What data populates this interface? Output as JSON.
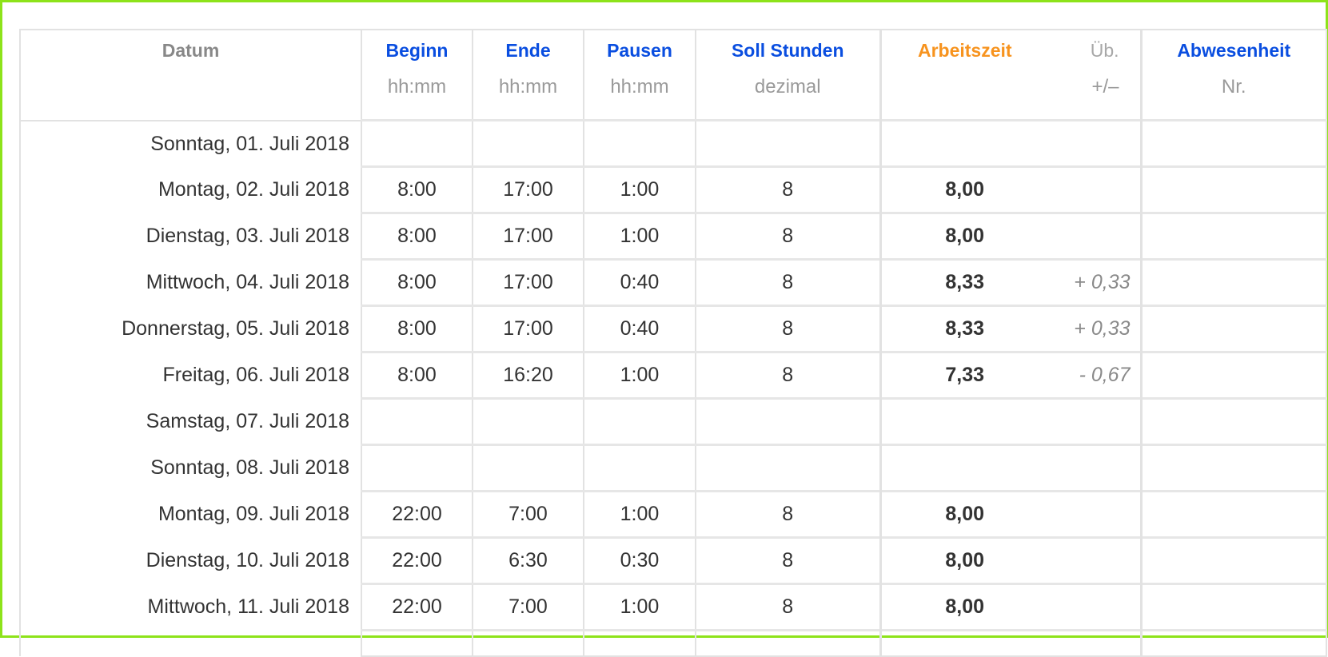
{
  "colors": {
    "frame": "#8de31a",
    "header_blue": "#0a4ee0",
    "header_orange": "#f7931e",
    "header_gray": "#888888"
  },
  "header": {
    "datum": "Datum",
    "beginn": {
      "label": "Beginn",
      "unit": "hh:mm"
    },
    "ende": {
      "label": "Ende",
      "unit": "hh:mm"
    },
    "pausen": {
      "label": "Pausen",
      "unit": "hh:mm"
    },
    "soll": {
      "label": "Soll Stunden",
      "unit": "dezimal"
    },
    "arbeitszeit": {
      "label": "Arbeitszeit",
      "unit": ""
    },
    "ueb": {
      "label": "Üb.",
      "unit": "+/–"
    },
    "abwesenheit": {
      "label": "Abwesenheit",
      "unit": "Nr."
    }
  },
  "rows": [
    {
      "date": "Sonntag, 01. Juli 2018",
      "beginn": "",
      "ende": "",
      "pausen": "",
      "soll": "",
      "arbeitszeit": "",
      "ueb": "",
      "abw": ""
    },
    {
      "date": "Montag, 02. Juli 2018",
      "beginn": "8:00",
      "ende": "17:00",
      "pausen": "1:00",
      "soll": "8",
      "arbeitszeit": "8,00",
      "ueb": "",
      "abw": ""
    },
    {
      "date": "Dienstag, 03. Juli 2018",
      "beginn": "8:00",
      "ende": "17:00",
      "pausen": "1:00",
      "soll": "8",
      "arbeitszeit": "8,00",
      "ueb": "",
      "abw": ""
    },
    {
      "date": "Mittwoch, 04. Juli 2018",
      "beginn": "8:00",
      "ende": "17:00",
      "pausen": "0:40",
      "soll": "8",
      "arbeitszeit": "8,33",
      "ueb": "+ 0,33",
      "abw": ""
    },
    {
      "date": "Donnerstag, 05. Juli 2018",
      "beginn": "8:00",
      "ende": "17:00",
      "pausen": "0:40",
      "soll": "8",
      "arbeitszeit": "8,33",
      "ueb": "+ 0,33",
      "abw": ""
    },
    {
      "date": "Freitag, 06. Juli 2018",
      "beginn": "8:00",
      "ende": "16:20",
      "pausen": "1:00",
      "soll": "8",
      "arbeitszeit": "7,33",
      "ueb": "- 0,67",
      "abw": ""
    },
    {
      "date": "Samstag, 07. Juli 2018",
      "beginn": "",
      "ende": "",
      "pausen": "",
      "soll": "",
      "arbeitszeit": "",
      "ueb": "",
      "abw": ""
    },
    {
      "date": "Sonntag, 08. Juli 2018",
      "beginn": "",
      "ende": "",
      "pausen": "",
      "soll": "",
      "arbeitszeit": "",
      "ueb": "",
      "abw": ""
    },
    {
      "date": "Montag, 09. Juli 2018",
      "beginn": "22:00",
      "ende": "7:00",
      "pausen": "1:00",
      "soll": "8",
      "arbeitszeit": "8,00",
      "ueb": "",
      "abw": ""
    },
    {
      "date": "Dienstag, 10. Juli 2018",
      "beginn": "22:00",
      "ende": "6:30",
      "pausen": "0:30",
      "soll": "8",
      "arbeitszeit": "8,00",
      "ueb": "",
      "abw": ""
    },
    {
      "date": "Mittwoch, 11. Juli 2018",
      "beginn": "22:00",
      "ende": "7:00",
      "pausen": "1:00",
      "soll": "8",
      "arbeitszeit": "8,00",
      "ueb": "",
      "abw": ""
    }
  ]
}
